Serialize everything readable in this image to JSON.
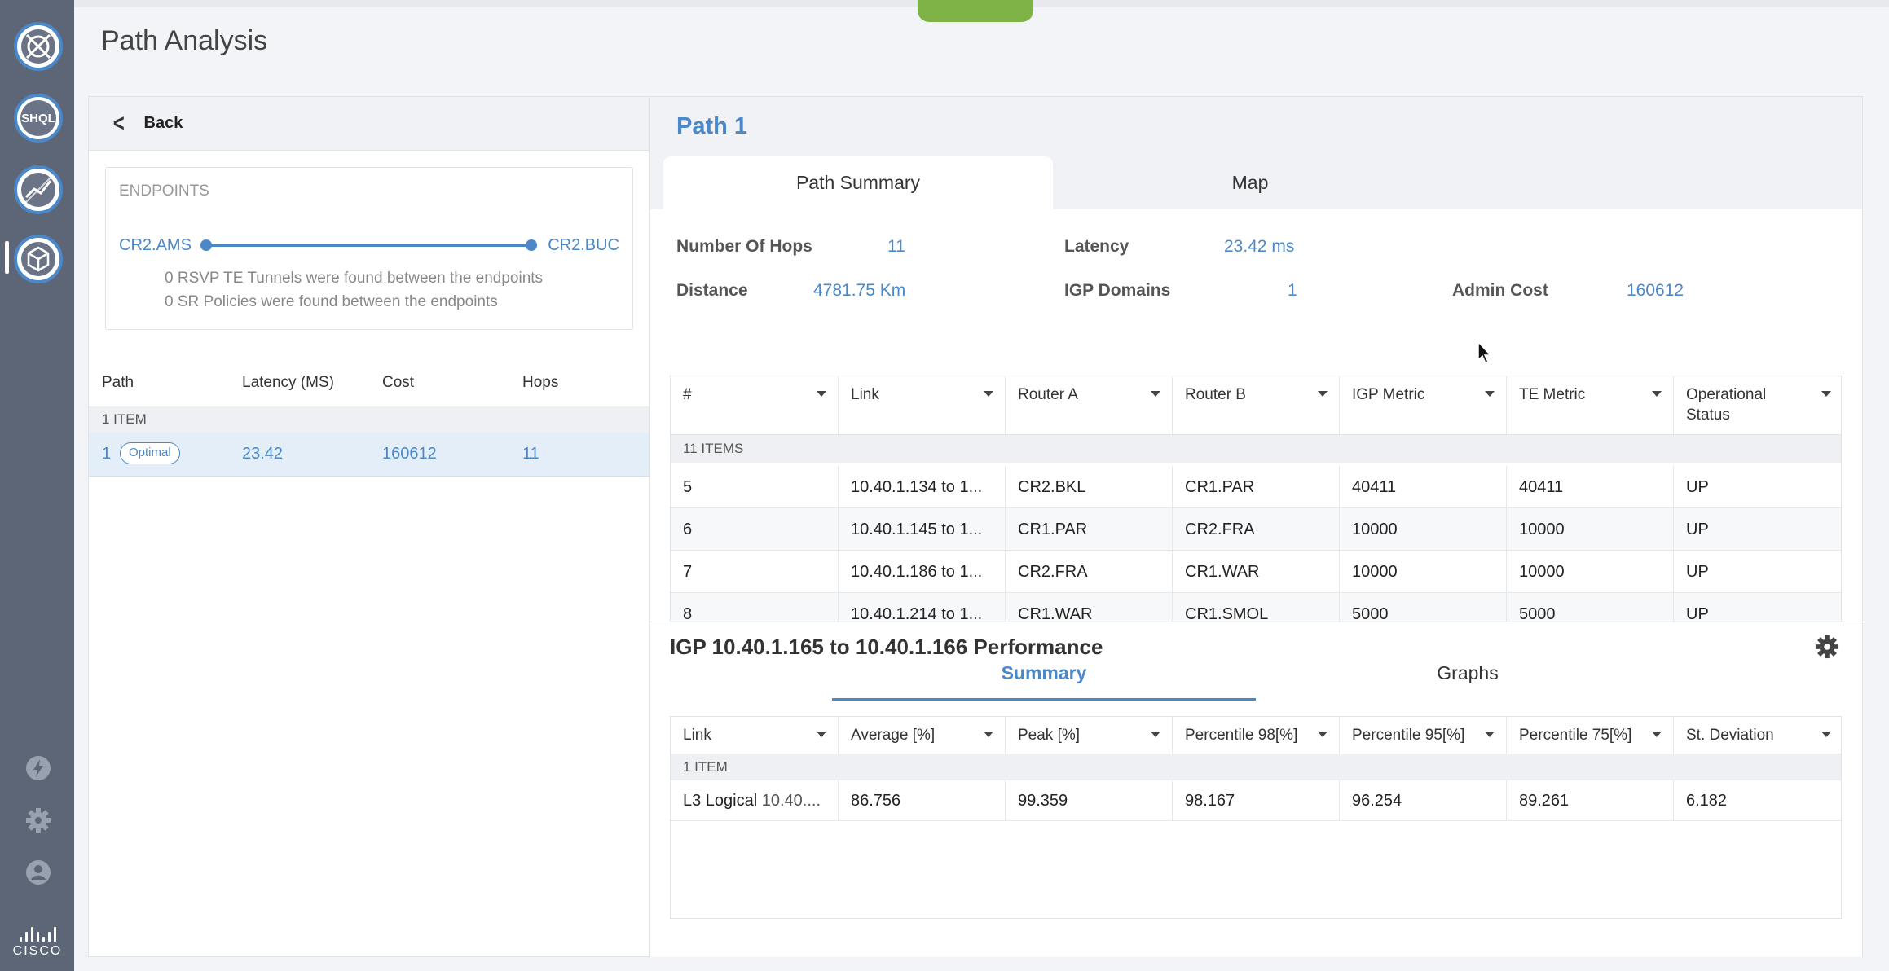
{
  "page": {
    "title": "Path Analysis"
  },
  "nav": {
    "icons": [
      "network-topology-icon",
      "shql-icon",
      "analytics-icon",
      "cube-icon"
    ],
    "shql_label": "SHQL",
    "bottom_icons": [
      "lightning-icon",
      "gear-icon",
      "user-icon"
    ],
    "brand": "CISCO"
  },
  "left": {
    "back_label": "Back",
    "endpoints": {
      "label": "ENDPOINTS",
      "a": "CR2.AMS",
      "b": "CR2.BUC",
      "note_rsvp": "0 RSVP TE Tunnels were found between the endpoints",
      "note_sr": "0 SR Policies were found between the endpoints"
    },
    "paths_table": {
      "headers": [
        "Path",
        "Latency (MS)",
        "Cost",
        "Hops"
      ],
      "count": "1 ITEM",
      "rows": [
        {
          "path": "1",
          "badge": "Optimal",
          "latency": "23.42",
          "cost": "160612",
          "hops": "11"
        }
      ]
    }
  },
  "right": {
    "title": "Path 1",
    "tabs": [
      "Path Summary",
      "Map"
    ],
    "stats": {
      "hops_label": "Number Of Hops",
      "hops": "11",
      "latency_label": "Latency",
      "latency": "23.42 ms",
      "distance_label": "Distance",
      "distance": "4781.75 Km",
      "igp_label": "IGP Domains",
      "igp": "1",
      "admin_label": "Admin Cost",
      "admin": "160612"
    },
    "links_table": {
      "headers": [
        "#",
        "Link",
        "Router A",
        "Router B",
        "IGP Metric",
        "TE Metric",
        "Operational",
        "Status"
      ],
      "count": "11 ITEMS",
      "rows": [
        {
          "n": "5",
          "link": "10.40.1.134 to 1...",
          "a": "CR2.BKL",
          "b": "CR1.PAR",
          "igp": "40411",
          "te": "40411",
          "status": "UP"
        },
        {
          "n": "6",
          "link": "10.40.1.145 to 1...",
          "a": "CR1.PAR",
          "b": "CR2.FRA",
          "igp": "10000",
          "te": "10000",
          "status": "UP"
        },
        {
          "n": "7",
          "link": "10.40.1.186 to 1...",
          "a": "CR2.FRA",
          "b": "CR1.WAR",
          "igp": "10000",
          "te": "10000",
          "status": "UP"
        },
        {
          "n": "8",
          "link": "10.40.1.214 to 1...",
          "a": "CR1.WAR",
          "b": "CR1.SMOL",
          "igp": "5000",
          "te": "5000",
          "status": "UP"
        }
      ]
    },
    "performance": {
      "title": "IGP 10.40.1.165 to 10.40.1.166 Performance",
      "tabs": [
        "Summary",
        "Graphs"
      ],
      "headers": [
        "Link",
        "Average [%]",
        "Peak [%]",
        "Percentile 98[%]",
        "Percentile 95[%]",
        "Percentile 75[%]",
        "St. Deviation"
      ],
      "count": "1 ITEM",
      "rows": [
        {
          "link_type": "L3 Logical",
          "link": "10.40....",
          "avg": "86.756",
          "peak": "99.359",
          "p98": "98.167",
          "p95": "96.254",
          "p75": "89.261",
          "sd": "6.182"
        }
      ]
    }
  }
}
